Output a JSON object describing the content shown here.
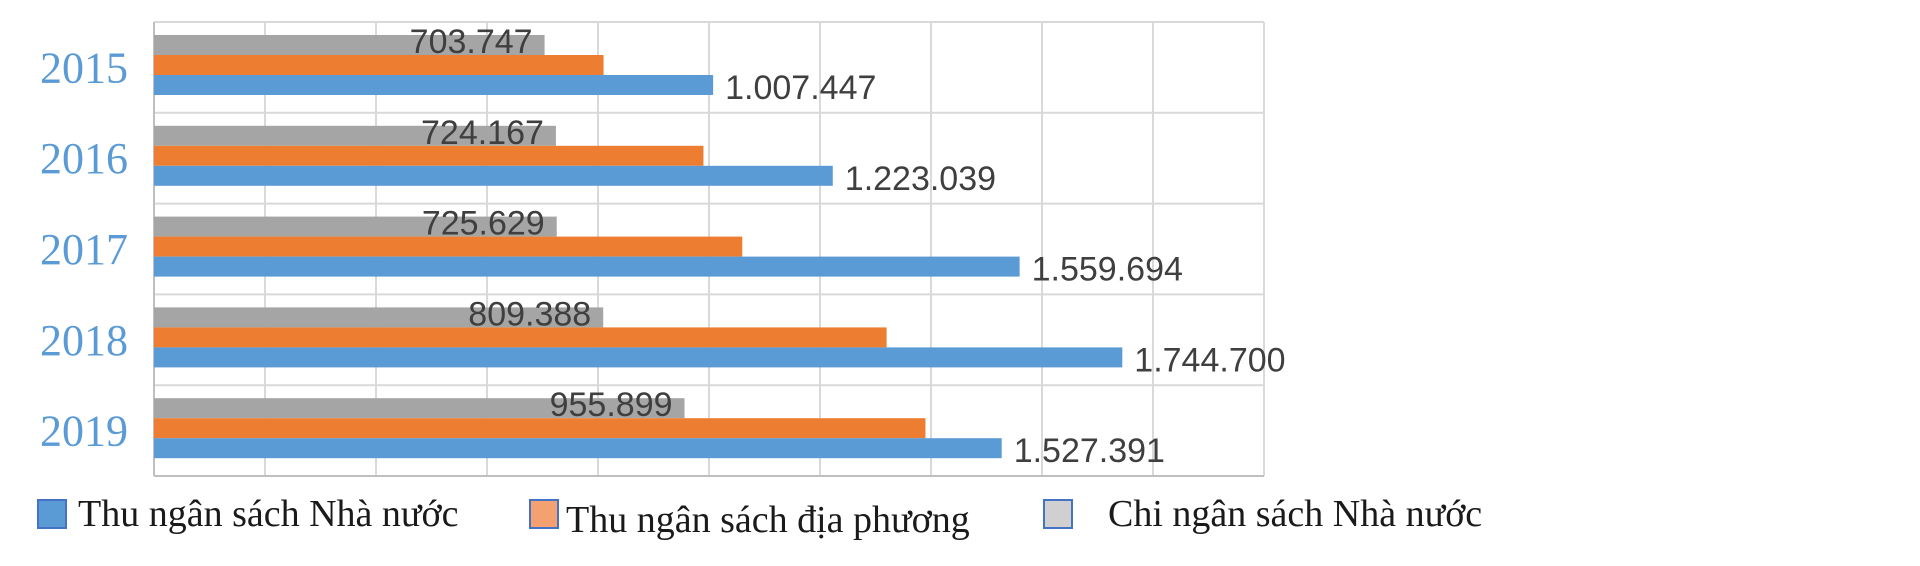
{
  "chart_data": {
    "type": "bar",
    "orientation": "horizontal",
    "categories": [
      "2015",
      "2016",
      "2017",
      "2018",
      "2019"
    ],
    "series": [
      {
        "name": "Thu ngân sách Nhà nước",
        "color": "#5b9bd5",
        "values": [
          1007447,
          1223039,
          1559694,
          1744700,
          1527391
        ],
        "labels": [
          "1.007.447",
          "1.223.039",
          "1.559.694",
          "1.744.700",
          "1.527.391"
        ]
      },
      {
        "name": "Thu ngân sách địa phương",
        "color": "#ed7d31",
        "values": [
          810000,
          990000,
          1060000,
          1320000,
          1390000
        ],
        "labels": []
      },
      {
        "name": "Chi ngân sách Nhà nước",
        "color": "#a5a5a5",
        "values": [
          703747,
          724167,
          725629,
          809388,
          955899
        ],
        "labels": [
          "703.747",
          "724.167",
          "725.629",
          "809.388",
          "955.899"
        ]
      }
    ],
    "legend_marker_colors": [
      "#5b9bd5",
      "#f4a070",
      "#d0d0d0"
    ],
    "xlim": [
      0,
      2000000
    ],
    "x_gridline_step": 200000,
    "grid": true,
    "legend_position": "bottom",
    "title": "",
    "xlabel": "",
    "ylabel": ""
  }
}
